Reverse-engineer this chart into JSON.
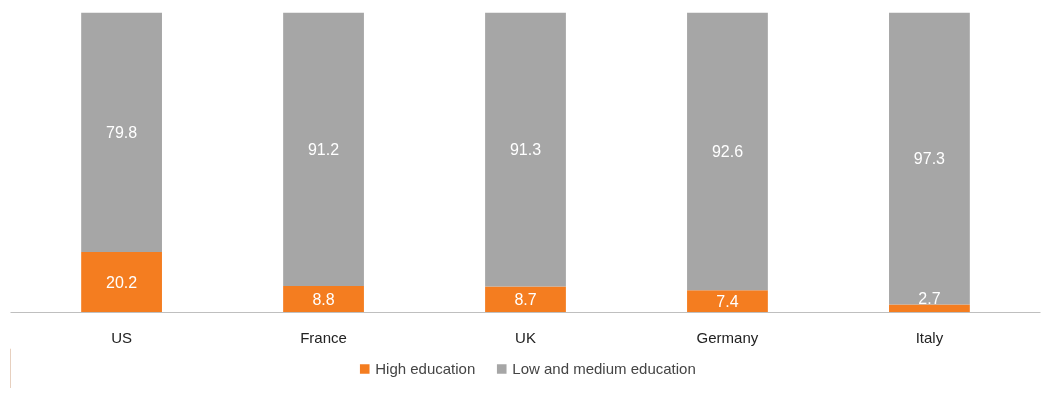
{
  "chart_data": {
    "type": "bar",
    "stacked": true,
    "categories": [
      "US",
      "France",
      "UK",
      "Germany",
      "Italy"
    ],
    "series": [
      {
        "name": "High education",
        "color": "#f47d20",
        "values": [
          20.2,
          8.8,
          8.7,
          7.4,
          2.7
        ]
      },
      {
        "name": "Low and medium education",
        "color": "#a6a6a6",
        "values": [
          79.8,
          91.2,
          91.3,
          92.6,
          97.3
        ]
      }
    ],
    "ylim": [
      0,
      100
    ],
    "tick_labels": "x",
    "data_labels": true,
    "legend": "bottom",
    "grid": false
  }
}
